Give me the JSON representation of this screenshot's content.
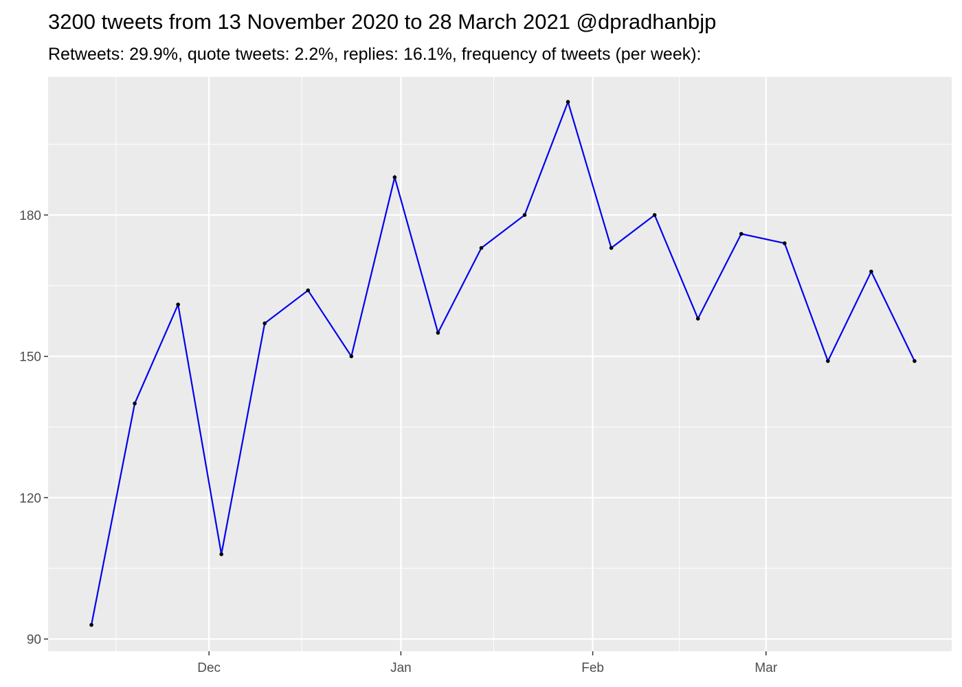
{
  "chart_data": {
    "type": "line",
    "title": "3200 tweets from 13 November 2020 to 28 March 2021 @dpradhanbjp",
    "subtitle": "Retweets: 29.9%, quote tweets: 2.2%, replies: 16.1%, frequency of tweets (per week):",
    "xlabel": "",
    "ylabel": "",
    "x": [
      "2020-11-12",
      "2020-11-19",
      "2020-11-26",
      "2020-12-03",
      "2020-12-10",
      "2020-12-17",
      "2020-12-24",
      "2020-12-31",
      "2021-01-07",
      "2021-01-14",
      "2021-01-21",
      "2021-01-28",
      "2021-02-04",
      "2021-02-11",
      "2021-02-18",
      "2021-02-25",
      "2021-03-04",
      "2021-03-11",
      "2021-03-18",
      "2021-03-25"
    ],
    "values": [
      93,
      140,
      161,
      108,
      157,
      164,
      150,
      188,
      155,
      173,
      180,
      204,
      173,
      180,
      158,
      176,
      174,
      149,
      168,
      149
    ],
    "xlim": [
      "2020-11-05",
      "2021-03-31"
    ],
    "ylim": [
      87.4,
      209.3
    ],
    "x_ticks": [
      {
        "date": "2020-12-01",
        "label": "Dec"
      },
      {
        "date": "2021-01-01",
        "label": "Jan"
      },
      {
        "date": "2021-02-01",
        "label": "Feb"
      },
      {
        "date": "2021-03-01",
        "label": "Mar"
      }
    ],
    "x_minor_ticks": [
      "2020-11-16",
      "2020-12-16",
      "2021-01-16",
      "2021-02-15"
    ],
    "y_ticks": [
      90,
      120,
      150,
      180
    ],
    "y_minor_ticks": [
      105,
      135,
      165,
      195
    ],
    "grid": true,
    "line_color": "#0000ee",
    "point_color": "#000000",
    "panel_background": "#ebebeb"
  }
}
